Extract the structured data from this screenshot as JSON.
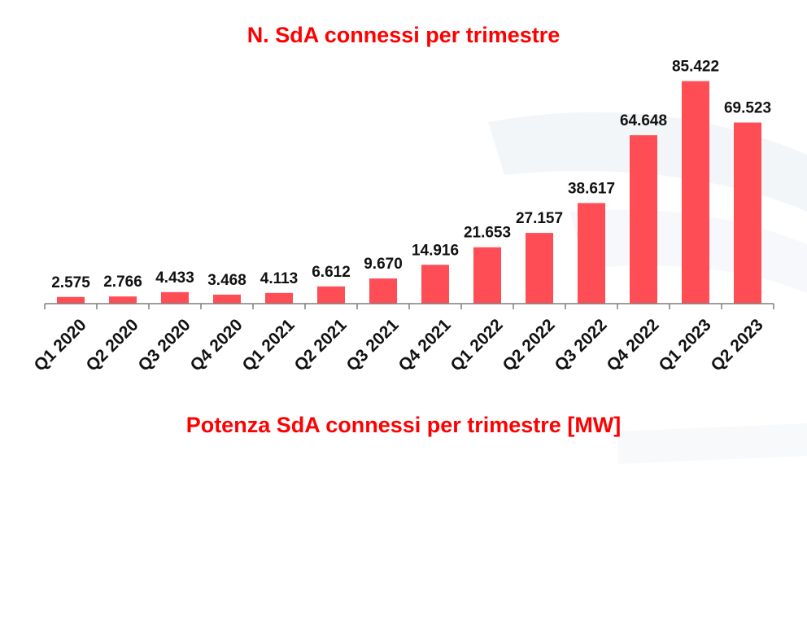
{
  "chart_data": {
    "type": "bar",
    "title": "N. SdA connessi per trimestre",
    "categories": [
      "Q1 2020",
      "Q2 2020",
      "Q3 2020",
      "Q4 2020",
      "Q1 2021",
      "Q2 2021",
      "Q3 2021",
      "Q4 2021",
      "Q1 2022",
      "Q2 2022",
      "Q3 2022",
      "Q4 2022",
      "Q1 2023",
      "Q2 2023"
    ],
    "values": [
      2575,
      2766,
      4433,
      3468,
      4113,
      6612,
      9670,
      14916,
      21653,
      27157,
      38617,
      64648,
      85422,
      69523
    ],
    "data_labels": [
      "2.575",
      "2.766",
      "4.433",
      "3.468",
      "4.113",
      "6.612",
      "9.670",
      "14.916",
      "21.653",
      "27.157",
      "38.617",
      "64.648",
      "85.422",
      "69.523"
    ],
    "ylim": [
      0,
      90000
    ],
    "grid": false,
    "legend": "none",
    "bar_color": "#ff4d55",
    "title_color": "#ff0000"
  },
  "second_title": "Potenza SdA connessi per trimestre [MW]"
}
